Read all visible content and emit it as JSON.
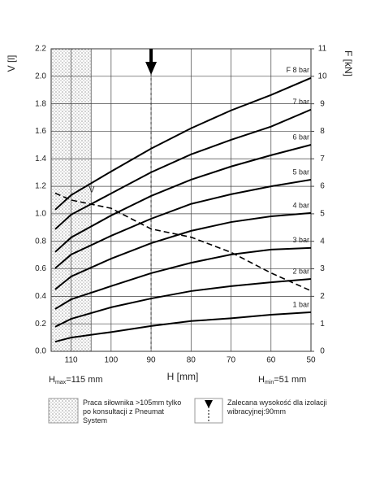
{
  "chart_data": {
    "type": "line",
    "x_label": "H [mm]",
    "y_label": "V [l]",
    "y2_label": "F [kN]",
    "xlim": [
      115,
      50
    ],
    "xticks": [
      110,
      100,
      90,
      80,
      70,
      60,
      50
    ],
    "ylim": [
      0,
      2.2
    ],
    "yticks": [
      {
        "value": 0,
        "label": "0.0"
      },
      0.2,
      0.4,
      0.6,
      0.8,
      {
        "value": 1,
        "label": "1.0"
      },
      1.2,
      1.4,
      1.6,
      1.8,
      {
        "value": 2,
        "label": "2.0"
      },
      2.2
    ],
    "y2lim": [
      0,
      11
    ],
    "y2ticks": [
      0,
      1,
      2,
      3,
      4,
      5,
      6,
      7,
      8,
      9,
      10,
      11
    ],
    "grid": true,
    "shaded_xlim": [
      115,
      105
    ],
    "marker_x": 90,
    "x": [
      114,
      110,
      100,
      90,
      80,
      70,
      60,
      50
    ],
    "series": [
      {
        "name": "1 bar",
        "color": "#000000",
        "axis": "y2",
        "values": [
          0.35,
          0.5,
          0.7,
          0.92,
          1.1,
          1.2,
          1.33,
          1.42
        ]
      },
      {
        "name": "2 bar",
        "color": "#000000",
        "axis": "y2",
        "values": [
          0.89,
          1.18,
          1.6,
          1.92,
          2.19,
          2.37,
          2.51,
          2.63
        ]
      },
      {
        "name": "3 bar",
        "color": "#000000",
        "axis": "y2",
        "values": [
          1.54,
          1.89,
          2.37,
          2.84,
          3.22,
          3.52,
          3.7,
          3.76
        ]
      },
      {
        "name": "4 bar",
        "color": "#000000",
        "axis": "y2",
        "values": [
          2.25,
          2.72,
          3.37,
          3.93,
          4.38,
          4.7,
          4.91,
          5.03
        ]
      },
      {
        "name": "5 bar",
        "color": "#000000",
        "axis": "y2",
        "values": [
          3.02,
          3.52,
          4.2,
          4.82,
          5.36,
          5.71,
          6.0,
          6.24
        ]
      },
      {
        "name": "6 bar",
        "color": "#000000",
        "axis": "y2",
        "values": [
          3.61,
          4.14,
          4.94,
          5.65,
          6.24,
          6.72,
          7.13,
          7.51
        ]
      },
      {
        "name": "7 bar",
        "color": "#000000",
        "axis": "y2",
        "values": [
          4.44,
          4.97,
          5.74,
          6.51,
          7.16,
          7.69,
          8.17,
          8.79
        ]
      },
      {
        "name": "F 8 bar",
        "color": "#000000",
        "axis": "y2",
        "values": [
          5.15,
          5.68,
          6.54,
          7.37,
          8.11,
          8.76,
          9.32,
          9.94
        ]
      },
      {
        "name": "V",
        "color": "#000000",
        "dashed": true,
        "values": [
          1.15,
          1.1,
          1.04,
          0.89,
          0.83,
          0.72,
          0.57,
          0.44
        ]
      }
    ],
    "hmax": {
      "symbol": "H",
      "sub": "max",
      "text": "=115 mm"
    },
    "hmin": {
      "symbol": "H",
      "sub": "min",
      "text": "=51 mm"
    },
    "legend": [
      {
        "text": "Praca siłownika >105mm tylko po konsultacji z Pneumat System"
      },
      {
        "text": "Zalecana wysokość dla izolacji wibracyjnej:90mm"
      }
    ]
  }
}
